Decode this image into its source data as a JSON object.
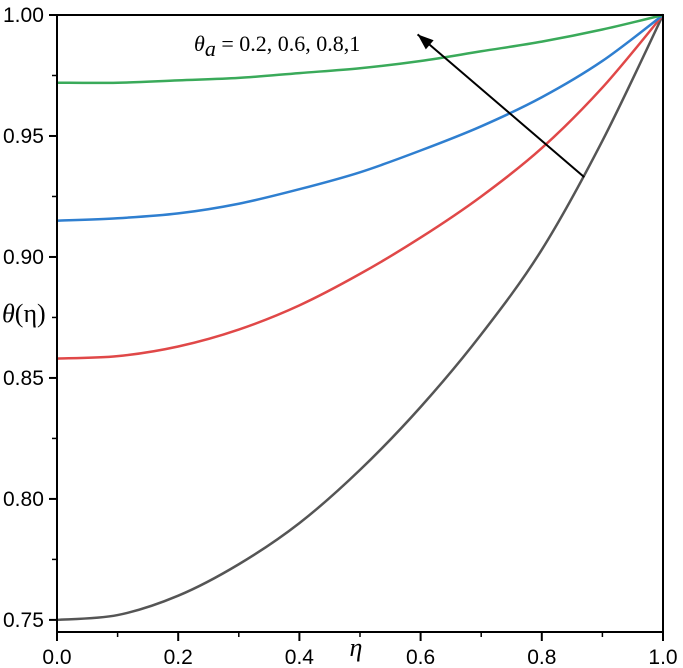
{
  "chart_data": {
    "type": "line",
    "title": "",
    "xlabel": "η",
    "ylabel_symbol": "θ",
    "ylabel_arg": "(η)",
    "xlim": [
      0.0,
      1.0
    ],
    "ylim": [
      0.745,
      1.0
    ],
    "x_ticks": [
      0.0,
      0.2,
      0.4,
      0.6,
      0.8,
      1.0
    ],
    "x_tick_labels": [
      "0.0",
      "0.2",
      "0.4",
      "0.6",
      "0.8",
      "1.0"
    ],
    "y_ticks": [
      0.75,
      0.8,
      0.85,
      0.9,
      0.95,
      1.0
    ],
    "y_tick_labels": [
      "0.75",
      "0.80",
      "0.85",
      "0.90",
      "0.95",
      "1.00"
    ],
    "grid": false,
    "legend": "none",
    "x": [
      0.0,
      0.1,
      0.2,
      0.3,
      0.4,
      0.5,
      0.6,
      0.7,
      0.8,
      0.9,
      1.0
    ],
    "series": [
      {
        "color": "#555555",
        "values": [
          0.75,
          0.752,
          0.76,
          0.773,
          0.79,
          0.812,
          0.838,
          0.868,
          0.903,
          0.948,
          1.0
        ]
      },
      {
        "color": "#e04848",
        "values": [
          0.858,
          0.859,
          0.863,
          0.87,
          0.88,
          0.893,
          0.908,
          0.925,
          0.945,
          0.97,
          1.0
        ]
      },
      {
        "color": "#2f7fd0",
        "values": [
          0.915,
          0.916,
          0.918,
          0.922,
          0.928,
          0.935,
          0.944,
          0.954,
          0.966,
          0.981,
          1.0
        ]
      },
      {
        "color": "#3aaa5a",
        "values": [
          0.972,
          0.972,
          0.973,
          0.974,
          0.976,
          0.978,
          0.981,
          0.985,
          0.989,
          0.994,
          1.0
        ]
      }
    ],
    "annotation": {
      "symbol": "θ",
      "subscript": "a",
      "text": " = 0.2, 0.6, 0.8,1",
      "arrow_from": [
        0.87,
        0.933
      ],
      "arrow_to": [
        0.595,
        0.992
      ]
    }
  }
}
